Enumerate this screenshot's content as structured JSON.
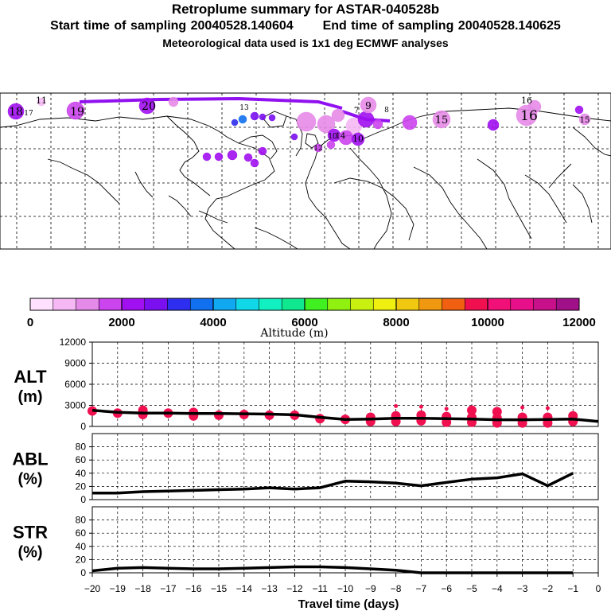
{
  "header": {
    "title": "Retroplume summary for ASTAR-040528b",
    "start_label": "Start time of sampling 20040528.140604",
    "end_label": "End time of sampling 20040528.140625",
    "met_label": "Meteorological data used is 1x1 deg ECMWF analyses"
  },
  "colorbar": {
    "label": "Altitude (m)",
    "ticks": [
      "0",
      "2000",
      "4000",
      "6000",
      "8000",
      "10000",
      "12000"
    ],
    "colors": [
      "#ffe0ff",
      "#f5b8f5",
      "#e58ae8",
      "#cc44ee",
      "#a010f0",
      "#7a10f0",
      "#2e2ef0",
      "#1070f0",
      "#10a8f0",
      "#10d8e8",
      "#10f0c0",
      "#10e890",
      "#40f020",
      "#90f010",
      "#c8f010",
      "#f0f010",
      "#f0c810",
      "#f09810",
      "#f06010",
      "#f01050",
      "#f01078",
      "#e8108a",
      "#c8108a",
      "#a01088"
    ]
  },
  "map": {
    "labels": [
      "18",
      "17",
      "11",
      "19",
      "20",
      "16",
      "13",
      "9",
      "8",
      "7",
      "15",
      "14",
      "12",
      "10",
      "10",
      "16",
      "15"
    ]
  },
  "panels": [
    {
      "id": "alt",
      "label_line1": "ALT",
      "label_line2": "(m)",
      "yticks": [
        "12000",
        "9000",
        "6000",
        "3000",
        "0"
      ]
    },
    {
      "id": "abl",
      "label_line1": "ABL",
      "label_line2": "(%)",
      "yticks": [
        "80",
        "60",
        "40",
        "20",
        "0"
      ]
    },
    {
      "id": "str",
      "label_line1": "STR",
      "label_line2": "(%)",
      "yticks": [
        "80",
        "60",
        "40",
        "20",
        "0"
      ]
    }
  ],
  "chart_data": [
    {
      "type": "line",
      "panel": "ALT",
      "title": "ALT (m)",
      "xlabel": "Travel time (days)",
      "ylabel": "ALT (m)",
      "xlim": [
        -20,
        0
      ],
      "ylim": [
        0,
        12000
      ],
      "x_ticks": [
        -20,
        -19,
        -18,
        -17,
        -16,
        -15,
        -14,
        -13,
        -12,
        -11,
        -10,
        -9,
        -8,
        -7,
        -6,
        -5,
        -4,
        -3,
        -2,
        -1,
        0
      ],
      "x": [
        -20,
        -19,
        -18,
        -17,
        -16,
        -15,
        -14,
        -13,
        -12,
        -11,
        -10,
        -9,
        -8,
        -7,
        -6,
        -5,
        -4,
        -3,
        -2,
        -1,
        0
      ],
      "y": [
        2300,
        2000,
        1900,
        1900,
        1850,
        1850,
        1800,
        1750,
        1650,
        1300,
        1000,
        1050,
        1150,
        1150,
        1100,
        1050,
        950,
        950,
        1000,
        1050,
        700
      ],
      "clusters": [
        {
          "x": -20,
          "y": 2200
        },
        {
          "x": -19,
          "y": 1900
        },
        {
          "x": -18,
          "y": 1700
        },
        {
          "x": -18,
          "y": 2300
        },
        {
          "x": -17,
          "y": 1900
        },
        {
          "x": -16,
          "y": 1500
        },
        {
          "x": -16,
          "y": 2000
        },
        {
          "x": -15,
          "y": 1600
        },
        {
          "x": -14,
          "y": 1700
        },
        {
          "x": -13,
          "y": 1600
        },
        {
          "x": -12,
          "y": 1600
        },
        {
          "x": -11,
          "y": 1100
        },
        {
          "x": -10,
          "y": 1000
        },
        {
          "x": -9,
          "y": 700
        },
        {
          "x": -9,
          "y": 1300
        },
        {
          "x": -8,
          "y": 700
        },
        {
          "x": -8,
          "y": 1500
        },
        {
          "x": -8,
          "y": 2900
        },
        {
          "x": -7,
          "y": 800
        },
        {
          "x": -7,
          "y": 1600
        },
        {
          "x": -7,
          "y": 2800
        },
        {
          "x": -6,
          "y": 600
        },
        {
          "x": -6,
          "y": 1400
        },
        {
          "x": -6,
          "y": 2500
        },
        {
          "x": -5,
          "y": 600
        },
        {
          "x": -5,
          "y": 1300
        },
        {
          "x": -5,
          "y": 2300
        },
        {
          "x": -4,
          "y": 500
        },
        {
          "x": -4,
          "y": 1200
        },
        {
          "x": -4,
          "y": 2100
        },
        {
          "x": -3,
          "y": 500
        },
        {
          "x": -3,
          "y": 1300
        },
        {
          "x": -3,
          "y": 2700
        },
        {
          "x": -2,
          "y": 500
        },
        {
          "x": -2,
          "y": 1300
        },
        {
          "x": -2,
          "y": 2600
        },
        {
          "x": -1,
          "y": 700
        },
        {
          "x": -1,
          "y": 1500
        }
      ]
    },
    {
      "type": "line",
      "panel": "ABL",
      "title": "ABL (%)",
      "xlabel": "Travel time (days)",
      "ylabel": "ABL (%)",
      "xlim": [
        -20,
        0
      ],
      "ylim": [
        0,
        100
      ],
      "x": [
        -20,
        -19,
        -18,
        -17,
        -16,
        -15,
        -14,
        -13,
        -12,
        -11,
        -10,
        -9,
        -8,
        -7,
        -6,
        -5,
        -4,
        -3,
        -2,
        -1
      ],
      "y": [
        10,
        10,
        12,
        13,
        14,
        15,
        16,
        18,
        16,
        18,
        28,
        27,
        25,
        21,
        26,
        31,
        33,
        39,
        21,
        40
      ]
    },
    {
      "type": "line",
      "panel": "STR",
      "title": "STR (%)",
      "xlabel": "Travel time (days)",
      "ylabel": "STR (%)",
      "xlim": [
        -20,
        0
      ],
      "ylim": [
        0,
        100
      ],
      "x": [
        -20,
        -19,
        -18,
        -17,
        -16,
        -15,
        -14,
        -13,
        -12,
        -11,
        -10,
        -9,
        -8,
        -7,
        -6,
        -5,
        -4,
        -3,
        -2,
        -1
      ],
      "y": [
        3,
        7,
        8,
        7,
        6,
        6,
        7,
        8,
        9,
        9,
        8,
        6,
        4,
        0,
        0,
        0,
        0,
        0,
        0,
        0
      ]
    }
  ]
}
